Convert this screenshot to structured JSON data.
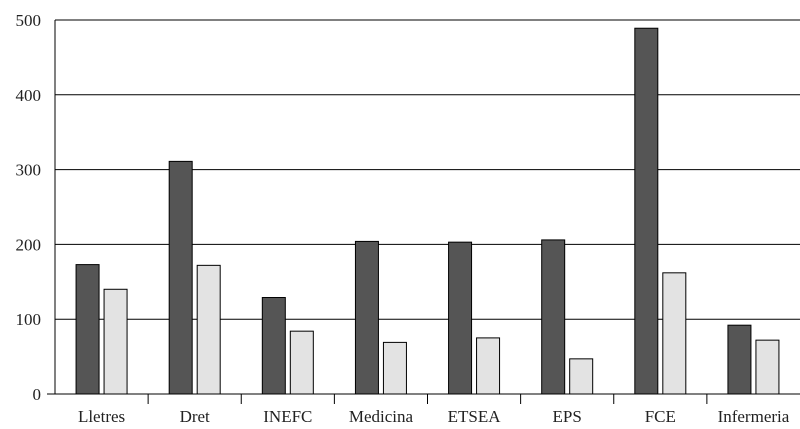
{
  "chart_data": {
    "type": "bar",
    "title": "",
    "xlabel": "",
    "ylabel": "",
    "ylim": [
      0,
      500
    ],
    "yticks": [
      0,
      100,
      200,
      300,
      400,
      500
    ],
    "grid": true,
    "legend": "none",
    "categories": [
      "Lletres",
      "Dret",
      "INEFC",
      "Medicina",
      "ETSEA",
      "EPS",
      "FCE",
      "Infermeria"
    ],
    "series": [
      {
        "color": "#555555",
        "values": [
          173,
          311,
          129,
          204,
          203,
          206,
          489,
          92
        ]
      },
      {
        "color": "#e3e3e3",
        "values": [
          140,
          172,
          84,
          69,
          75,
          47,
          162,
          72
        ]
      }
    ]
  }
}
